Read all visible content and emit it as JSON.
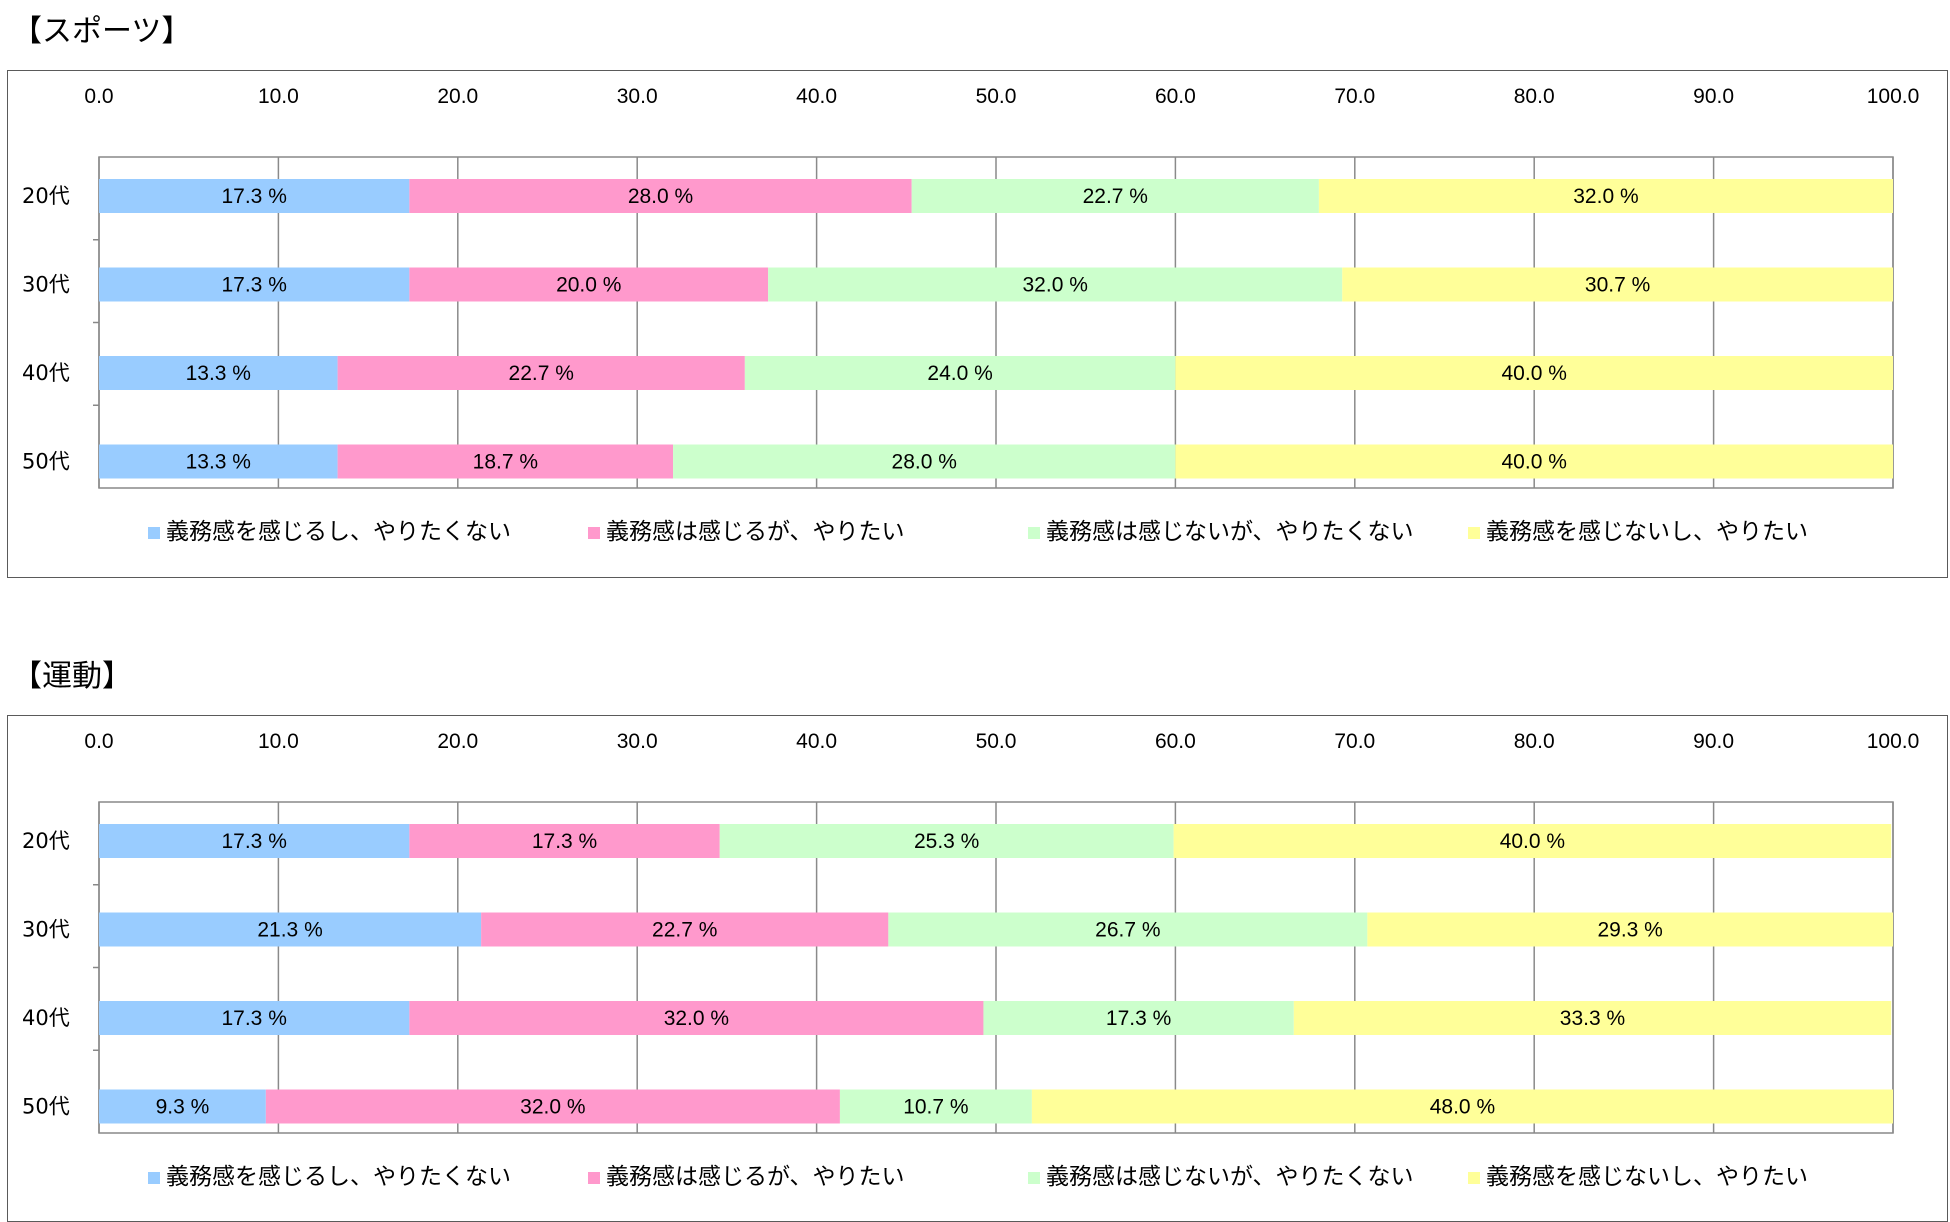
{
  "chart_data": [
    {
      "type": "bar",
      "orientation": "horizontal",
      "stacked": true,
      "title": "【スポーツ】",
      "categories": [
        "20代",
        "30代",
        "40代",
        "50代"
      ],
      "xlim": [
        0,
        100
      ],
      "x_ticks": [
        "0.0",
        "10.0",
        "20.0",
        "30.0",
        "40.0",
        "50.0",
        "60.0",
        "70.0",
        "80.0",
        "90.0",
        "100.0"
      ],
      "x_axis_position": "top",
      "grid": true,
      "legend_position": "bottom",
      "value_suffix": " %",
      "series": [
        {
          "name": "義務感を感じるし、やりたくない",
          "color": "#99CCFF",
          "values": [
            17.3,
            17.3,
            13.3,
            13.3
          ]
        },
        {
          "name": "義務感は感じるが、やりたい",
          "color": "#FF99CC",
          "values": [
            28.0,
            20.0,
            22.7,
            18.7
          ]
        },
        {
          "name": "義務感は感じないが、やりたくない",
          "color": "#CCFFCC",
          "values": [
            22.7,
            32.0,
            24.0,
            28.0
          ]
        },
        {
          "name": "義務感を感じないし、やりたい",
          "color": "#FFFF99",
          "values": [
            32.0,
            30.7,
            40.0,
            40.0
          ]
        }
      ]
    },
    {
      "type": "bar",
      "orientation": "horizontal",
      "stacked": true,
      "title": "【運動】",
      "categories": [
        "20代",
        "30代",
        "40代",
        "50代"
      ],
      "xlim": [
        0,
        100
      ],
      "x_ticks": [
        "0.0",
        "10.0",
        "20.0",
        "30.0",
        "40.0",
        "50.0",
        "60.0",
        "70.0",
        "80.0",
        "90.0",
        "100.0"
      ],
      "x_axis_position": "top",
      "grid": true,
      "legend_position": "bottom",
      "value_suffix": " %",
      "series": [
        {
          "name": "義務感を感じるし、やりたくない",
          "color": "#99CCFF",
          "values": [
            17.3,
            21.3,
            17.3,
            9.3
          ]
        },
        {
          "name": "義務感は感じるが、やりたい",
          "color": "#FF99CC",
          "values": [
            17.3,
            22.7,
            32.0,
            32.0
          ]
        },
        {
          "name": "義務感は感じないが、やりたくない",
          "color": "#CCFFCC",
          "values": [
            25.3,
            26.7,
            17.3,
            10.7
          ]
        },
        {
          "name": "義務感を感じないし、やりたい",
          "color": "#FFFF99",
          "values": [
            40.0,
            29.3,
            33.3,
            48.0
          ]
        }
      ]
    }
  ]
}
